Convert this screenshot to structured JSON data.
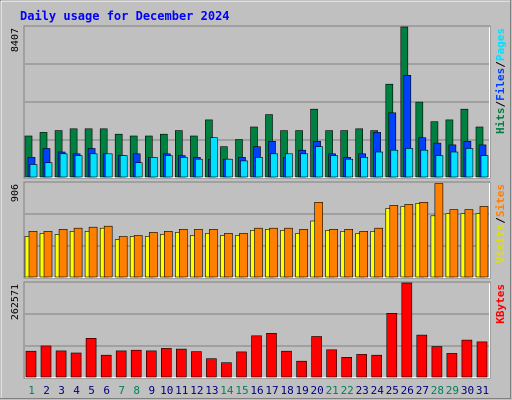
{
  "title": "Daily usage for December 2024",
  "colors": {
    "background": "#c0c0c0",
    "title": "#0000ff",
    "hits": "#008040",
    "files": "#0040ff",
    "pages": "#00e0ff",
    "visits": "#ffff00",
    "sites": "#ff8000",
    "kbytes": "#ff0000",
    "weekend_day": "#00805c",
    "weekday_day": "#000080"
  },
  "right_labels": {
    "top": [
      {
        "text": "Hits",
        "color": "#008040"
      },
      {
        "text": "/",
        "color": "#000000"
      },
      {
        "text": "Files",
        "color": "#0040ff"
      },
      {
        "text": "/",
        "color": "#000000"
      },
      {
        "text": "Pages",
        "color": "#00e0ff"
      }
    ],
    "middle": [
      {
        "text": "Visits",
        "color": "#e0e000"
      },
      {
        "text": "/",
        "color": "#000000"
      },
      {
        "text": "Sites",
        "color": "#ff8000"
      }
    ],
    "bottom": [
      {
        "text": "KBytes",
        "color": "#ff0000"
      }
    ]
  },
  "chart_data": {
    "type": "bar",
    "title": "Daily usage for December 2024",
    "categories": [
      "1",
      "2",
      "3",
      "4",
      "5",
      "6",
      "7",
      "8",
      "9",
      "10",
      "11",
      "12",
      "13",
      "14",
      "15",
      "16",
      "17",
      "18",
      "19",
      "20",
      "21",
      "22",
      "23",
      "24",
      "25",
      "26",
      "27",
      "28",
      "29",
      "30",
      "31"
    ],
    "weekend_days": [
      "1",
      "7",
      "8",
      "14",
      "15",
      "21",
      "22",
      "28",
      "29"
    ],
    "panels": [
      {
        "name": "hits-files-pages",
        "ymax_label": "8407",
        "ylim": [
          0,
          8407
        ],
        "series": [
          {
            "name": "Hits",
            "values": [
              2300,
              2500,
              2600,
              2700,
              2700,
              2700,
              2400,
              2300,
              2300,
              2400,
              2600,
              2300,
              3200,
              1700,
              2100,
              2800,
              3500,
              2600,
              2600,
              3800,
              2600,
              2600,
              2700,
              2600,
              5200,
              8407,
              4200,
              3100,
              3200,
              3800,
              2800
            ]
          },
          {
            "name": "Files",
            "values": [
              1100,
              1600,
              1400,
              1300,
              1600,
              1300,
              1200,
              1300,
              1100,
              1300,
              1200,
              1100,
              1000,
              1000,
              1100,
              1700,
              2000,
              1100,
              1500,
              2000,
              1300,
              1100,
              1300,
              2500,
              3600,
              5700,
              2200,
              1900,
              1800,
              2000,
              1800
            ]
          },
          {
            "name": "Pages",
            "values": [
              700,
              800,
              1300,
              1200,
              1300,
              1300,
              1200,
              800,
              1100,
              1200,
              1100,
              1000,
              2200,
              1000,
              900,
              1100,
              1300,
              1300,
              1300,
              1700,
              1200,
              1000,
              1100,
              1400,
              1500,
              1600,
              1500,
              1200,
              1400,
              1600,
              1200
            ]
          }
        ]
      },
      {
        "name": "visits-sites",
        "ymax_label": "906",
        "ylim": [
          0,
          906
        ],
        "series": [
          {
            "name": "Visits",
            "values": [
              390,
              420,
              410,
              440,
              440,
              470,
              360,
              390,
              390,
              410,
              430,
              400,
              420,
              400,
              400,
              450,
              460,
              450,
              420,
              540,
              450,
              440,
              420,
              440,
              660,
              680,
              710,
              590,
              610,
              610,
              610
            ]
          },
          {
            "name": "Sites",
            "values": [
              440,
              440,
              460,
              470,
              480,
              490,
              390,
              400,
              430,
              440,
              460,
              460,
              460,
              420,
              420,
              470,
              470,
              470,
              460,
              720,
              460,
              460,
              440,
              470,
              690,
              700,
              720,
              900,
              650,
              650,
              680
            ]
          }
        ]
      },
      {
        "name": "kbytes",
        "ymax_label": "262571",
        "ylim": [
          0,
          262571
        ],
        "series": [
          {
            "name": "KBytes",
            "values": [
              72000,
              87000,
              73000,
              67000,
              108000,
              61000,
              73000,
              75000,
              73000,
              80000,
              78000,
              71000,
              51000,
              40000,
              70000,
              115000,
              122000,
              72000,
              44000,
              113000,
              76000,
              55000,
              63000,
              61000,
              178000,
              262571,
              117000,
              85000,
              66000,
              103000,
              98000
            ]
          }
        ]
      }
    ]
  }
}
